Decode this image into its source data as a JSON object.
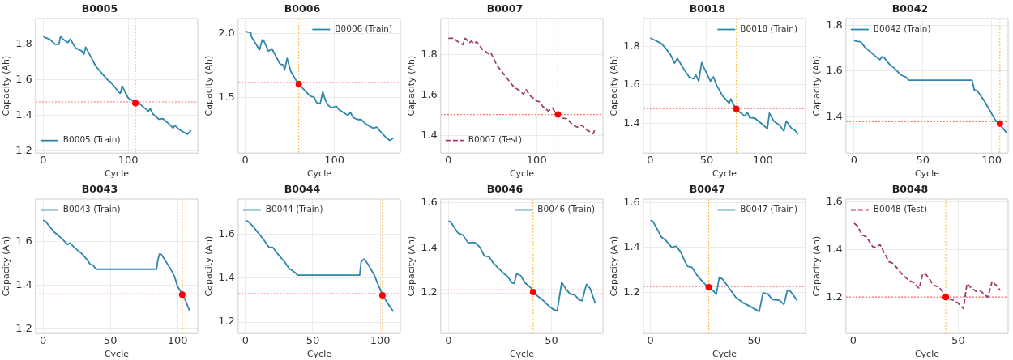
{
  "chart_data": [
    {
      "type": "line",
      "title": "B0005",
      "xlabel": "Cycle",
      "ylabel": "Capacity (Ah)",
      "xlim": [
        -9,
        182
      ],
      "xticks": [
        0,
        100
      ],
      "ylim": [
        1.19,
        1.945
      ],
      "yticks": [
        1.2,
        1.4,
        1.6,
        1.8
      ],
      "grid": true,
      "legend": "bottom left",
      "series": [
        {
          "name": "B0005 (Train)",
          "color": "#2e86ab",
          "line_style": "solid",
          "x": [
            0,
            2.4,
            7.5,
            14,
            18.5,
            20.5,
            23,
            29,
            32,
            38,
            45,
            48,
            50,
            55,
            62,
            69,
            76,
            79,
            90,
            91,
            93,
            97,
            100,
            107,
            112,
            120,
            124,
            126,
            129,
            136,
            141,
            148,
            153,
            155,
            160,
            168,
            170,
            174
          ],
          "values": [
            1.847,
            1.838,
            1.83,
            1.8,
            1.8,
            1.847,
            1.83,
            1.81,
            1.83,
            1.78,
            1.764,
            1.745,
            1.784,
            1.74,
            1.677,
            1.638,
            1.6,
            1.59,
            1.527,
            1.527,
            1.567,
            1.527,
            1.5,
            1.48,
            1.473,
            1.44,
            1.425,
            1.44,
            1.41,
            1.38,
            1.383,
            1.354,
            1.33,
            1.346,
            1.323,
            1.3,
            1.296,
            1.318
          ]
        },
        {
          "type": "scatter",
          "color": "#ff0000",
          "marker": "circle",
          "x": [
            108.6
          ],
          "values": [
            1.47
          ]
        }
      ],
      "ref_lines": [
        {
          "axis": "y",
          "value": 1.477,
          "color": "#ff6b6b",
          "line_style": "dotted"
        },
        {
          "axis": "x",
          "value": 108.6,
          "color": "#ffc04d",
          "line_style": "dotted"
        }
      ]
    },
    {
      "type": "line",
      "title": "B0006",
      "xlabel": "Cycle",
      "ylabel": "Capacity (Ah)",
      "xlim": [
        -8,
        174
      ],
      "xticks": [
        0,
        100
      ],
      "ylim": [
        1.065,
        2.115
      ],
      "yticks": [
        1.5,
        {
          "value": 2,
          "label": "2.0"
        }
      ],
      "grid": true,
      "legend": "top right",
      "series": [
        {
          "name": "B0006 (Train)",
          "color": "#2e86ab",
          "line_style": "solid",
          "x": [
            0,
            3,
            6,
            7,
            16,
            19,
            21,
            26,
            30,
            33,
            39,
            43,
            44,
            47,
            51,
            59,
            66,
            72,
            75,
            77,
            80,
            84,
            87,
            90,
            93,
            97,
            102,
            105,
            115,
            118,
            121,
            126,
            130,
            135,
            143,
            148,
            151,
            157,
            162,
            166
          ],
          "values": [
            2.016,
            2.009,
            2.009,
            1.971,
            1.871,
            1.949,
            1.938,
            1.86,
            1.878,
            1.838,
            1.76,
            1.753,
            1.711,
            1.804,
            1.704,
            1.609,
            1.56,
            1.516,
            1.504,
            1.504,
            1.46,
            1.449,
            1.542,
            1.476,
            1.438,
            1.42,
            1.431,
            1.404,
            1.36,
            1.382,
            1.342,
            1.327,
            1.327,
            1.293,
            1.26,
            1.267,
            1.238,
            1.193,
            1.164,
            1.182
          ]
        },
        {
          "type": "scatter",
          "color": "#ff0000",
          "marker": "circle",
          "x": [
            60
          ],
          "values": [
            1.604
          ]
        }
      ],
      "ref_lines": [
        {
          "axis": "y",
          "value": 1.616,
          "color": "#ff6b6b",
          "line_style": "dotted"
        },
        {
          "axis": "x",
          "value": 60,
          "color": "#ffc04d",
          "line_style": "dotted"
        }
      ]
    },
    {
      "type": "line",
      "title": "B0007",
      "xlabel": "Cycle",
      "ylabel": "Capacity (Ah)",
      "xlim": [
        -8.6,
        175
      ],
      "xticks": [
        0,
        100
      ],
      "ylim": [
        1.314,
        1.98
      ],
      "yticks": [
        1.4,
        1.6,
        1.8
      ],
      "grid": true,
      "legend": "bottom left",
      "series": [
        {
          "name": "B0007 (Test)",
          "color": "#a23b72",
          "line_style": "dashed",
          "x": [
            0,
            6,
            11,
            16.5,
            19,
            24,
            26,
            29,
            32,
            39,
            44,
            46,
            48,
            55,
            65,
            74,
            79,
            85,
            88,
            92,
            100,
            103,
            107,
            113,
            118,
            121,
            129,
            134,
            141,
            146,
            151,
            156,
            164,
            166
          ],
          "values": [
            1.882,
            1.882,
            1.865,
            1.851,
            1.882,
            1.861,
            1.868,
            1.856,
            1.865,
            1.825,
            1.811,
            1.804,
            1.811,
            1.748,
            1.692,
            1.642,
            1.628,
            1.606,
            1.628,
            1.6,
            1.572,
            1.569,
            1.544,
            1.523,
            1.537,
            1.516,
            1.487,
            1.485,
            1.452,
            1.442,
            1.452,
            1.431,
            1.41,
            1.431
          ]
        },
        {
          "type": "scatter",
          "color": "#ff0000",
          "marker": "circle",
          "x": [
            124
          ],
          "values": [
            1.505
          ]
        }
      ],
      "ref_lines": [
        {
          "axis": "y",
          "value": 1.505,
          "color": "#ff6b6b",
          "line_style": "dotted"
        },
        {
          "axis": "x",
          "value": 124,
          "color": "#ffc04d",
          "line_style": "dotted"
        }
      ]
    },
    {
      "type": "line",
      "title": "B0018",
      "xlabel": "Cycle",
      "ylabel": "Capacity (Ah)",
      "xlim": [
        -6.2,
        137.9
      ],
      "xticks": [
        0,
        50,
        100
      ],
      "ylim": [
        1.245,
        1.945
      ],
      "yticks": [
        1.4,
        1.6,
        1.8
      ],
      "grid": true,
      "legend": "top right",
      "series": [
        {
          "name": "B0018 (Train)",
          "color": "#2e86ab",
          "line_style": "solid",
          "x": [
            0,
            4.7,
            9.8,
            13.7,
            17.6,
            21.5,
            24,
            30.5,
            34.4,
            38.3,
            40.4,
            43,
            45.6,
            48.7,
            53.4,
            56,
            59,
            64.2,
            66.8,
            70,
            71.5,
            75.9,
            83.7,
            86.3,
            88.1,
            92.8,
            100.5,
            104,
            105.8,
            109.6,
            114.8,
            118.7,
            120.8,
            125.2,
            128.5,
            131.1
          ],
          "values": [
            1.844,
            1.83,
            1.815,
            1.79,
            1.76,
            1.713,
            1.738,
            1.675,
            1.642,
            1.631,
            1.652,
            1.619,
            1.716,
            1.676,
            1.619,
            1.642,
            1.597,
            1.542,
            1.527,
            1.504,
            1.527,
            1.474,
            1.438,
            1.456,
            1.43,
            1.427,
            1.39,
            1.372,
            1.453,
            1.412,
            1.39,
            1.36,
            1.412,
            1.375,
            1.364,
            1.342
          ]
        },
        {
          "type": "scatter",
          "color": "#ff0000",
          "marker": "circle",
          "x": [
            76.4
          ],
          "values": [
            1.475
          ]
        }
      ],
      "ref_lines": [
        {
          "axis": "y",
          "value": 1.477,
          "color": "#ff6b6b",
          "line_style": "dotted"
        },
        {
          "axis": "x",
          "value": 76.4,
          "color": "#ffc04d",
          "line_style": "dotted"
        }
      ]
    },
    {
      "type": "line",
      "title": "B0042",
      "xlabel": "Cycle",
      "ylabel": "Capacity (Ah)",
      "xlim": [
        -5.9,
        112
      ],
      "xticks": [
        0,
        50,
        100
      ],
      "ylim": [
        1.24,
        1.831
      ],
      "yticks": [
        1.4,
        1.6,
        1.8
      ],
      "grid": true,
      "legend": "top left",
      "series": [
        {
          "name": "B0042 (Train)",
          "color": "#2e86ab",
          "line_style": "solid",
          "x": [
            0,
            2.2,
            5,
            7.7,
            12,
            15.4,
            18.7,
            20.5,
            22,
            25.3,
            29.7,
            34,
            38,
            39.6,
            85.8,
            87.4,
            89.6,
            94.6,
            99,
            102.7,
            105.6,
            110.7
          ],
          "values": [
            1.734,
            1.731,
            1.728,
            1.706,
            1.684,
            1.666,
            1.65,
            1.664,
            1.658,
            1.633,
            1.61,
            1.583,
            1.573,
            1.56,
            1.56,
            1.518,
            1.514,
            1.47,
            1.424,
            1.385,
            1.369,
            1.33
          ]
        },
        {
          "type": "scatter",
          "color": "#ff0000",
          "marker": "circle",
          "x": [
            106
          ],
          "values": [
            1.37
          ]
        }
      ],
      "ref_lines": [
        {
          "axis": "y",
          "value": 1.378,
          "color": "#ff6b6b",
          "line_style": "dotted"
        },
        {
          "axis": "x",
          "value": 106,
          "color": "#ffc04d",
          "line_style": "dotted"
        }
      ]
    },
    {
      "type": "line",
      "title": "B0043",
      "xlabel": "Cycle",
      "ylabel": "Capacity (Ah)",
      "xlim": [
        -5.6,
        115
      ],
      "xticks": [
        0,
        50,
        100
      ],
      "ylim": [
        1.18,
        1.795
      ],
      "yticks": [
        1.2,
        1.4,
        1.6
      ],
      "grid": true,
      "legend": "top left",
      "series": [
        {
          "name": "B0043 (Train)",
          "color": "#2e86ab",
          "line_style": "solid",
          "x": [
            0,
            1.5,
            3.7,
            8,
            13.4,
            18.2,
            19.9,
            24.2,
            29,
            32.9,
            35,
            37.2,
            39.4,
            84.4,
            85.3,
            86.6,
            88,
            91.3,
            94.6,
            97.8,
            100,
            102.2,
            105.4,
            109
          ],
          "values": [
            1.697,
            1.695,
            1.678,
            1.645,
            1.617,
            1.587,
            1.594,
            1.568,
            1.544,
            1.516,
            1.496,
            1.492,
            1.474,
            1.474,
            1.516,
            1.544,
            1.541,
            1.509,
            1.477,
            1.439,
            1.394,
            1.374,
            1.338,
            1.283
          ]
        },
        {
          "type": "scatter",
          "color": "#ff0000",
          "marker": "circle",
          "x": [
            103.5
          ],
          "values": [
            1.357
          ]
        }
      ],
      "ref_lines": [
        {
          "axis": "y",
          "value": 1.361,
          "color": "#ff6b6b",
          "line_style": "dotted"
        },
        {
          "axis": "x",
          "value": 103.5,
          "color": "#ffc04d",
          "line_style": "dotted"
        }
      ]
    },
    {
      "type": "line",
      "title": "B0044",
      "xlabel": "Cycle",
      "ylabel": "Capacity (Ah)",
      "xlim": [
        -5.4,
        115
      ],
      "xticks": [
        0,
        50,
        100
      ],
      "ylim": [
        1.148,
        1.762
      ],
      "yticks": [
        1.2,
        1.4,
        1.6
      ],
      "grid": true,
      "legend": "top left",
      "series": [
        {
          "name": "B0044 (Train)",
          "color": "#2e86ab",
          "line_style": "solid",
          "x": [
            0,
            2.2,
            5.4,
            8.7,
            13,
            17.4,
            20.2,
            23.9,
            29.3,
            32.6,
            34.8,
            39.1,
            84.8,
            85.9,
            88,
            91.3,
            95.7,
            98.9,
            101.7,
            105.4,
            109.8
          ],
          "values": [
            1.665,
            1.658,
            1.639,
            1.613,
            1.581,
            1.542,
            1.542,
            1.512,
            1.473,
            1.443,
            1.436,
            1.414,
            1.414,
            1.475,
            1.488,
            1.462,
            1.414,
            1.365,
            1.326,
            1.287,
            1.248
          ]
        },
        {
          "type": "scatter",
          "color": "#ff0000",
          "marker": "circle",
          "x": [
            101.7
          ],
          "values": [
            1.322
          ]
        }
      ],
      "ref_lines": [
        {
          "axis": "y",
          "value": 1.329,
          "color": "#ff6b6b",
          "line_style": "dotted"
        },
        {
          "axis": "x",
          "value": 101.7,
          "color": "#ffc04d",
          "line_style": "dotted"
        }
      ]
    },
    {
      "type": "line",
      "title": "B0046",
      "xlabel": "Cycle",
      "ylabel": "Capacity (Ah)",
      "xlim": [
        -3.7,
        75
      ],
      "xticks": [
        0,
        50
      ],
      "ylim": [
        1.02,
        1.616
      ],
      "yticks": [
        1.2,
        1.4,
        1.6
      ],
      "grid": true,
      "legend": "top right",
      "series": [
        {
          "name": "B0046 (Train)",
          "color": "#2e86ab",
          "line_style": "solid",
          "x": [
            0,
            1.1,
            3.3,
            4.7,
            7.1,
            9.6,
            11.8,
            13.2,
            15.3,
            17.4,
            19.8,
            21.7,
            24.5,
            26.6,
            28.8,
            30.9,
            32,
            33.1,
            35.1,
            37.3,
            40.1,
            42.2,
            45.8,
            48.6,
            50.7,
            52.8,
            55,
            57.1,
            59.2,
            61.3,
            63.5,
            64.9,
            67,
            68.8,
            71.3
          ],
          "values": [
            1.518,
            1.515,
            1.484,
            1.465,
            1.456,
            1.421,
            1.424,
            1.421,
            1.402,
            1.364,
            1.36,
            1.333,
            1.307,
            1.288,
            1.272,
            1.244,
            1.242,
            1.285,
            1.276,
            1.244,
            1.221,
            1.194,
            1.168,
            1.143,
            1.128,
            1.12,
            1.247,
            1.216,
            1.194,
            1.191,
            1.168,
            1.166,
            1.238,
            1.219,
            1.153
          ]
        },
        {
          "type": "scatter",
          "color": "#ff0000",
          "marker": "circle",
          "x": [
            41.1
          ],
          "values": [
            1.204
          ]
        }
      ],
      "ref_lines": [
        {
          "axis": "y",
          "value": 1.213,
          "color": "#ff6b6b",
          "line_style": "dotted"
        },
        {
          "axis": "x",
          "value": 41.1,
          "color": "#ffc04d",
          "line_style": "dotted"
        }
      ]
    },
    {
      "type": "line",
      "title": "B0047",
      "xlabel": "Cycle",
      "ylabel": "Capacity (Ah)",
      "xlim": [
        -3.4,
        74.7
      ],
      "xticks": [
        0,
        50
      ],
      "ylim": [
        1.015,
        1.617
      ],
      "yticks": [
        1.2,
        1.4,
        1.6
      ],
      "grid": true,
      "legend": "top right",
      "series": [
        {
          "name": "B0047 (Train)",
          "color": "#2e86ab",
          "line_style": "solid",
          "x": [
            0,
            1.1,
            3.2,
            5.3,
            7.4,
            10.3,
            12.4,
            14.5,
            16.6,
            18,
            20,
            22.2,
            25,
            27.8,
            30.6,
            31.7,
            33.1,
            34.6,
            37.6,
            41.1,
            44.7,
            48.9,
            52.4,
            54.2,
            56.6,
            58.7,
            62.2,
            64.3,
            66,
            67.5,
            70.7
          ],
          "values": [
            1.521,
            1.518,
            1.483,
            1.447,
            1.432,
            1.4,
            1.406,
            1.381,
            1.338,
            1.315,
            1.311,
            1.279,
            1.248,
            1.222,
            1.203,
            1.19,
            1.264,
            1.26,
            1.222,
            1.177,
            1.152,
            1.132,
            1.113,
            1.196,
            1.192,
            1.167,
            1.164,
            1.145,
            1.209,
            1.203,
            1.162
          ]
        },
        {
          "type": "scatter",
          "color": "#ff0000",
          "marker": "circle",
          "x": [
            28.1
          ],
          "values": [
            1.222
          ]
        }
      ],
      "ref_lines": [
        {
          "axis": "y",
          "value": 1.225,
          "color": "#ff6b6b",
          "line_style": "dotted"
        },
        {
          "axis": "x",
          "value": 28.1,
          "color": "#ffc04d",
          "line_style": "dotted"
        }
      ]
    },
    {
      "type": "line",
      "title": "B0048",
      "xlabel": "Cycle",
      "ylabel": "Capacity (Ah)",
      "xlim": [
        -3.5,
        73.8
      ],
      "xticks": [
        0,
        50
      ],
      "ylim": [
        1.047,
        1.612
      ],
      "yticks": [
        1.2,
        1.4,
        1.6
      ],
      "grid": true,
      "legend": "top left",
      "series": [
        {
          "name": "B0048 (Test)",
          "color": "#a23b72",
          "line_style": "dashed",
          "x": [
            0.4,
            2.1,
            4.2,
            6.3,
            9.2,
            10.8,
            12.7,
            14.8,
            16.9,
            19,
            21.1,
            23.9,
            26.8,
            28.9,
            31.4,
            33.1,
            34.8,
            36.6,
            38,
            40.8,
            43,
            45.1,
            47.9,
            50,
            52.5,
            54.2,
            56.3,
            58.5,
            60.6,
            62.7,
            64.1,
            66.2,
            68.3,
            70.1
          ],
          "values": [
            1.51,
            1.498,
            1.46,
            1.453,
            1.412,
            1.409,
            1.421,
            1.385,
            1.349,
            1.341,
            1.319,
            1.289,
            1.269,
            1.26,
            1.236,
            1.298,
            1.294,
            1.272,
            1.251,
            1.242,
            1.218,
            1.194,
            1.186,
            1.174,
            1.152,
            1.257,
            1.238,
            1.224,
            1.226,
            1.209,
            1.2,
            1.266,
            1.248,
            1.227
          ]
        },
        {
          "type": "scatter",
          "color": "#ff0000",
          "marker": "circle",
          "x": [
            44.1
          ],
          "values": [
            1.2
          ]
        }
      ],
      "ref_lines": [
        {
          "axis": "y",
          "value": 1.2,
          "color": "#ff6b6b",
          "line_style": "dotted"
        },
        {
          "axis": "x",
          "value": 44.1,
          "color": "#ffc04d",
          "line_style": "dotted"
        }
      ]
    }
  ]
}
